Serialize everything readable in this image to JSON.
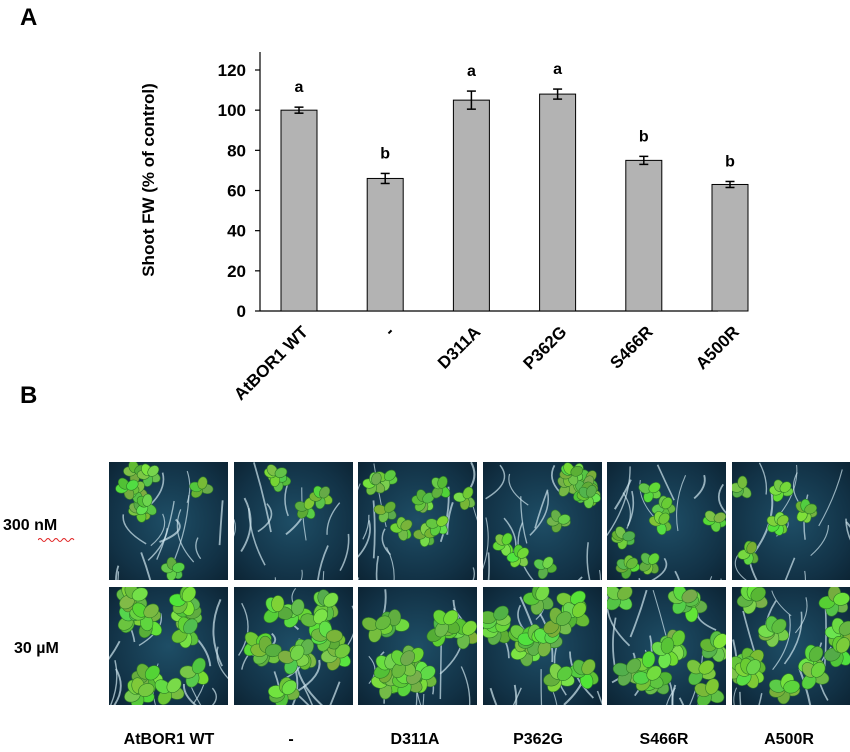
{
  "panels": {
    "a": "A",
    "b": "B"
  },
  "chart_data": {
    "type": "bar",
    "ylabel": "Shoot FW (% of control)",
    "xlabel": "",
    "ylim": [
      0,
      120
    ],
    "yticks": [
      0,
      20,
      40,
      60,
      80,
      100,
      120
    ],
    "categories": [
      "AtBOR1 WT",
      "-",
      "D311A",
      "P362G",
      "S466R",
      "A500R"
    ],
    "values": [
      100,
      66,
      105,
      108,
      75,
      63
    ],
    "errors": [
      1.5,
      2.5,
      4.5,
      2.5,
      2,
      1.5
    ],
    "significance": [
      "a",
      "b",
      "a",
      "a",
      "b",
      "b"
    ],
    "bar_color": "#b3b3b3",
    "grid": false
  },
  "photos": {
    "rows": [
      "300 nM",
      "30 µM"
    ],
    "columns": [
      "AtBOR1 WT",
      "-",
      "D311A",
      "P362G",
      "S466R",
      "A500R"
    ],
    "background_color": "#123246",
    "leaf_color": "#6fd24a",
    "root_color": "#cfe6ee",
    "plant_density": [
      [
        8,
        4,
        9,
        12,
        7,
        5
      ],
      [
        12,
        12,
        12,
        12,
        12,
        11
      ]
    ]
  }
}
